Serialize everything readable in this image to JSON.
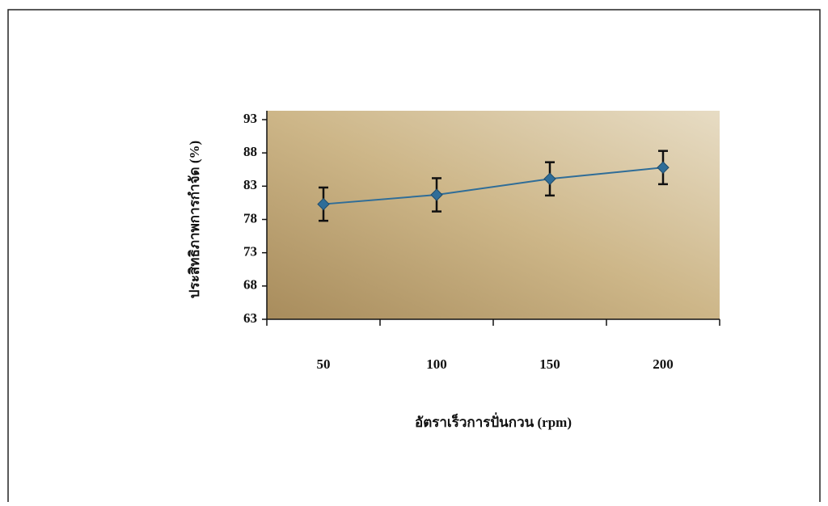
{
  "chart_data": {
    "type": "line",
    "x_label": "อัตราเร็วการปั่นกวน (rpm)",
    "y_label": "ประสิทธิภาพการกำจัด (%)",
    "categories": [
      "50",
      "100",
      "150",
      "200"
    ],
    "series": [
      {
        "color": "#2f6d98",
        "values": [
          80.3,
          81.7,
          84.1,
          85.8
        ],
        "errors": [
          2.5,
          2.5,
          2.5,
          2.5
        ]
      }
    ],
    "ylim": [
      63,
      93
    ],
    "yticks": [
      63,
      68,
      73,
      78,
      83,
      88,
      93
    ]
  }
}
